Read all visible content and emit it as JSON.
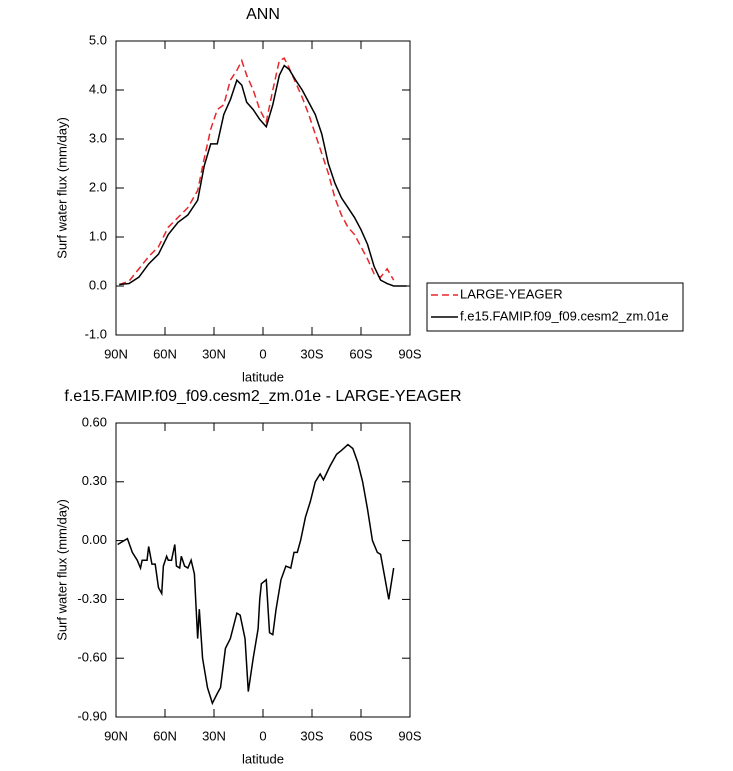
{
  "chart_data": [
    {
      "type": "line",
      "title": "ANN",
      "x_label": "latitude",
      "y_label": "Surf water flux (mm/day)",
      "xlim": [
        90,
        -90
      ],
      "xticks": [
        {
          "value": 90,
          "label": "90N"
        },
        {
          "value": 60,
          "label": "60N"
        },
        {
          "value": 30,
          "label": "30N"
        },
        0,
        {
          "value": -30,
          "label": "30S"
        },
        {
          "value": -60,
          "label": "60S"
        },
        {
          "value": -90,
          "label": "90S"
        }
      ],
      "ylim": [
        -1,
        5
      ],
      "yticks": [
        {
          "value": 5,
          "label": "5.0"
        },
        {
          "value": 4,
          "label": "4.0"
        },
        {
          "value": 3,
          "label": "3.0"
        },
        {
          "value": 2,
          "label": "2.0"
        },
        {
          "value": 1,
          "label": "1.0"
        },
        {
          "value": 0,
          "label": "0.0"
        },
        {
          "value": -1,
          "label": "-1.0"
        }
      ],
      "legend": "right",
      "x": [
        88,
        82,
        76,
        70,
        64,
        58,
        52,
        46,
        40,
        36,
        32,
        28,
        24,
        20,
        16,
        13,
        10,
        6,
        2,
        -2,
        -6,
        -10,
        -13,
        -16,
        -20,
        -24,
        -28,
        -32,
        -36,
        -40,
        -44,
        -48,
        -52,
        -56,
        -60,
        -64,
        -68,
        -72,
        -76,
        -80,
        -84,
        -88
      ],
      "series": [
        {
          "name": "LARGE-YEAGER",
          "color": "#e8262a",
          "dash": "dashed",
          "values": [
            0.03,
            0.1,
            0.35,
            0.6,
            0.8,
            1.2,
            1.4,
            1.6,
            1.95,
            2.6,
            3.2,
            3.6,
            3.7,
            4.2,
            4.4,
            4.6,
            4.3,
            4.0,
            3.6,
            3.35,
            4.0,
            4.6,
            4.65,
            4.45,
            4.15,
            3.85,
            3.5,
            3.1,
            2.7,
            2.3,
            1.8,
            1.45,
            1.2,
            1.05,
            0.8,
            0.55,
            0.25,
            0.18,
            0.35,
            0.12,
            null,
            null
          ]
        },
        {
          "name": "f.e15.FAMIP.f09_f09.cesm2_zm.01e",
          "color": "#000000",
          "dash": "solid",
          "values": [
            0.03,
            0.05,
            0.18,
            0.45,
            0.65,
            1.05,
            1.3,
            1.45,
            1.75,
            2.45,
            2.9,
            2.9,
            3.5,
            3.8,
            4.2,
            4.1,
            3.75,
            3.6,
            3.4,
            3.25,
            3.7,
            4.3,
            4.5,
            4.42,
            4.2,
            4.0,
            3.75,
            3.5,
            3.1,
            2.5,
            2.1,
            1.8,
            1.6,
            1.4,
            1.15,
            0.85,
            0.4,
            0.12,
            0.05,
            0.0,
            0.0,
            0.0
          ]
        }
      ]
    },
    {
      "type": "line",
      "title": "f.e15.FAMIP.f09_f09.cesm2_zm.01e - LARGE-YEAGER",
      "x_label": "latitude",
      "y_label": "Surf water flux (mm/day)",
      "xlim": [
        90,
        -90
      ],
      "xticks": [
        {
          "value": 90,
          "label": "90N"
        },
        {
          "value": 60,
          "label": "60N"
        },
        {
          "value": 30,
          "label": "30N"
        },
        0,
        {
          "value": -30,
          "label": "30S"
        },
        {
          "value": -60,
          "label": "60S"
        },
        {
          "value": -90,
          "label": "90S"
        }
      ],
      "ylim": [
        -0.9,
        0.6
      ],
      "yticks": [
        {
          "value": 0.6,
          "label": "0.60"
        },
        {
          "value": 0.3,
          "label": "0.30"
        },
        {
          "value": 0,
          "label": "0.00"
        },
        {
          "value": -0.3,
          "label": "-0.30"
        },
        {
          "value": -0.6,
          "label": "-0.60"
        },
        {
          "value": -0.9,
          "label": "-0.90"
        }
      ],
      "x": [
        89,
        83,
        80,
        77,
        75,
        74,
        71,
        70,
        68,
        66,
        64,
        62,
        61,
        59,
        58,
        56,
        54,
        53,
        51,
        50,
        48,
        46,
        44,
        42,
        40,
        39,
        37,
        34,
        31,
        28,
        26,
        23,
        20,
        16,
        14,
        11,
        9,
        6,
        3,
        2,
        1,
        -2,
        -4,
        -6,
        -8,
        -11,
        -14,
        -17,
        -19,
        -21,
        -23,
        -26,
        -29,
        -32,
        -35,
        -37,
        -41,
        -45,
        -48,
        -52,
        -55,
        -58,
        -61,
        -64,
        -67,
        -70,
        -72,
        -77,
        -80
      ],
      "series": [
        {
          "color": "#000000",
          "dash": "solid",
          "values": [
            -0.02,
            0.01,
            -0.06,
            -0.1,
            -0.14,
            -0.1,
            -0.1,
            -0.03,
            -0.12,
            -0.12,
            -0.24,
            -0.27,
            -0.13,
            -0.08,
            -0.1,
            -0.1,
            -0.02,
            -0.13,
            -0.14,
            -0.08,
            -0.13,
            -0.14,
            -0.1,
            -0.17,
            -0.5,
            -0.35,
            -0.6,
            -0.75,
            -0.83,
            -0.78,
            -0.75,
            -0.55,
            -0.5,
            -0.37,
            -0.38,
            -0.5,
            -0.77,
            -0.6,
            -0.45,
            -0.3,
            -0.22,
            -0.2,
            -0.47,
            -0.48,
            -0.35,
            -0.2,
            -0.13,
            -0.14,
            -0.06,
            -0.06,
            0.0,
            0.12,
            0.2,
            0.3,
            0.34,
            0.31,
            0.38,
            0.44,
            0.46,
            0.49,
            0.47,
            0.4,
            0.3,
            0.16,
            0.0,
            -0.06,
            -0.07,
            -0.3,
            -0.14
          ]
        }
      ]
    }
  ]
}
